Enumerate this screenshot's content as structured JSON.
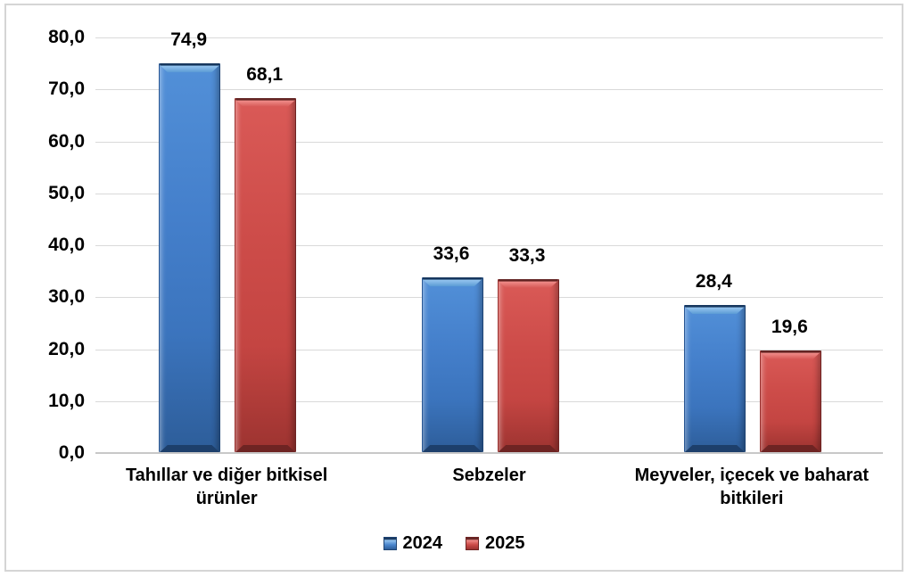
{
  "chart_data": {
    "type": "bar",
    "title": "",
    "categories": [
      "Tahıllar ve diğer bitkisel ürünler",
      "Sebzeler",
      "Meyveler, içecek ve baharat bitkileri"
    ],
    "series": [
      {
        "name": "2024",
        "color": "#4180CB",
        "values": [
          74.9,
          33.6,
          28.4
        ],
        "value_labels": [
          "74,9",
          "33,6",
          "28,4"
        ]
      },
      {
        "name": "2025",
        "color": "#CC4B48",
        "values": [
          68.1,
          33.3,
          19.6
        ],
        "value_labels": [
          "68,1",
          "33,3",
          "19,6"
        ]
      }
    ],
    "y_axis": {
      "min": 0,
      "max": 80,
      "step": 10,
      "tick_labels": [
        "0,0",
        "10,0",
        "20,0",
        "30,0",
        "40,0",
        "50,0",
        "60,0",
        "70,0",
        "80,0"
      ]
    },
    "grid": true,
    "legend_position": "bottom",
    "decimal_separator": ",",
    "colors": {
      "grid": "#D9D9D9",
      "axis_line": "#C8C8C8",
      "text": "#000000",
      "background": "#FFFFFF",
      "frame_border": "#D5D5D5"
    }
  }
}
